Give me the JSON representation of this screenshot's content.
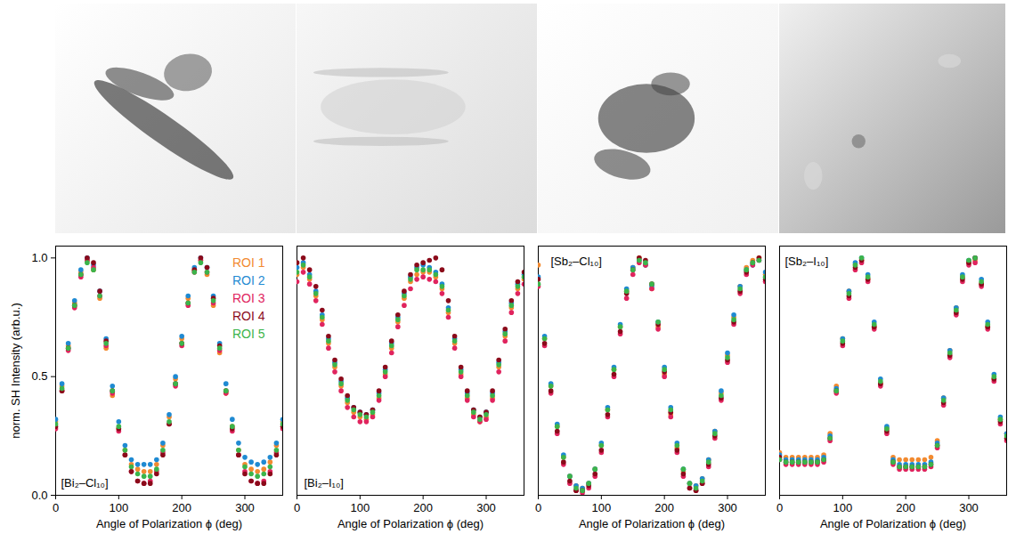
{
  "chart_data": [
    {
      "type": "scatter",
      "title": "[Bi₂–Cl₁₀]",
      "x_label": "Angle of Polarization ϕ (deg)",
      "y_label": "norm. SH Intensity (arb.u.)",
      "xlim": [
        0,
        360
      ],
      "xticks": [
        0,
        100,
        200,
        300
      ],
      "ylim": [
        0,
        1.05
      ],
      "yticks": [
        {
          "value": 0,
          "label": "0.0"
        },
        {
          "value": 0.5,
          "label": "0.5"
        },
        {
          "value": 1,
          "label": "1.0"
        }
      ],
      "legend": "upper right",
      "marker": "circle",
      "x": [
        0,
        10,
        20,
        30,
        40,
        50,
        60,
        70,
        80,
        90,
        100,
        110,
        120,
        130,
        140,
        150,
        160,
        170,
        180,
        190,
        200,
        210,
        220,
        230,
        240,
        250,
        260,
        270,
        280,
        290,
        300,
        310,
        320,
        330,
        340,
        350,
        360
      ],
      "series": [
        {
          "name": "ROI 1",
          "color": "#f28a30",
          "values": [
            0.31,
            0.46,
            0.63,
            0.81,
            0.94,
            0.99,
            0.95,
            0.83,
            0.62,
            0.42,
            0.28,
            0.19,
            0.13,
            0.11,
            0.1,
            0.1,
            0.13,
            0.21,
            0.33,
            0.49,
            0.66,
            0.83,
            0.95,
            0.99,
            0.93,
            0.8,
            0.6,
            0.43,
            0.29,
            0.19,
            0.13,
            0.11,
            0.1,
            0.11,
            0.14,
            0.21,
            0.31
          ]
        },
        {
          "name": "ROI 2",
          "color": "#1f8ad2",
          "values": [
            0.32,
            0.47,
            0.64,
            0.82,
            0.95,
            1.0,
            0.97,
            0.86,
            0.66,
            0.46,
            0.31,
            0.21,
            0.15,
            0.13,
            0.13,
            0.13,
            0.15,
            0.22,
            0.34,
            0.5,
            0.67,
            0.84,
            0.96,
            1.0,
            0.96,
            0.84,
            0.64,
            0.47,
            0.32,
            0.22,
            0.16,
            0.14,
            0.13,
            0.14,
            0.16,
            0.22,
            0.32
          ]
        },
        {
          "name": "ROI 3",
          "color": "#e0245e",
          "values": [
            0.28,
            0.44,
            0.61,
            0.79,
            0.92,
            0.99,
            0.96,
            0.84,
            0.63,
            0.43,
            0.27,
            0.17,
            0.1,
            0.06,
            0.05,
            0.06,
            0.1,
            0.18,
            0.3,
            0.46,
            0.63,
            0.8,
            0.94,
            0.99,
            0.94,
            0.81,
            0.61,
            0.43,
            0.27,
            0.17,
            0.1,
            0.06,
            0.05,
            0.06,
            0.1,
            0.18,
            0.28
          ]
        },
        {
          "name": "ROI 4",
          "color": "#8b0a1a",
          "values": [
            0.29,
            0.44,
            0.62,
            0.8,
            0.93,
            1.0,
            0.98,
            0.86,
            0.65,
            0.44,
            0.28,
            0.17,
            0.1,
            0.06,
            0.05,
            0.05,
            0.09,
            0.17,
            0.3,
            0.47,
            0.64,
            0.81,
            0.95,
            1.0,
            0.96,
            0.83,
            0.63,
            0.44,
            0.28,
            0.17,
            0.09,
            0.06,
            0.05,
            0.05,
            0.09,
            0.17,
            0.29
          ]
        },
        {
          "name": "ROI 5",
          "color": "#3cb44b",
          "values": [
            0.3,
            0.45,
            0.62,
            0.8,
            0.93,
            0.98,
            0.95,
            0.84,
            0.64,
            0.44,
            0.29,
            0.19,
            0.12,
            0.09,
            0.08,
            0.08,
            0.11,
            0.19,
            0.31,
            0.47,
            0.64,
            0.81,
            0.94,
            0.98,
            0.94,
            0.82,
            0.62,
            0.44,
            0.29,
            0.19,
            0.12,
            0.09,
            0.08,
            0.09,
            0.12,
            0.19,
            0.3
          ]
        }
      ]
    },
    {
      "type": "scatter",
      "title": "[Bi₂–I₁₀]",
      "x_label": "Angle of Polarization ϕ (deg)",
      "xlim": [
        0,
        360
      ],
      "xticks": [
        0,
        100,
        200,
        300
      ],
      "ylim": [
        0,
        1.05
      ],
      "tick_labels": "x",
      "marker": "circle",
      "x": [
        0,
        10,
        20,
        30,
        40,
        50,
        60,
        70,
        80,
        90,
        100,
        110,
        120,
        130,
        140,
        150,
        160,
        170,
        180,
        190,
        200,
        210,
        220,
        230,
        240,
        250,
        260,
        270,
        280,
        290,
        300,
        310,
        320,
        330,
        340,
        350,
        360
      ],
      "series": [
        {
          "name": "ROI 1",
          "color": "#f28a30",
          "values": [
            0.93,
            0.96,
            0.91,
            0.84,
            0.74,
            0.64,
            0.54,
            0.46,
            0.39,
            0.35,
            0.33,
            0.32,
            0.34,
            0.41,
            0.51,
            0.62,
            0.73,
            0.83,
            0.9,
            0.93,
            0.94,
            0.94,
            0.92,
            0.87,
            0.77,
            0.64,
            0.51,
            0.41,
            0.34,
            0.31,
            0.33,
            0.41,
            0.54,
            0.67,
            0.79,
            0.87,
            0.91
          ]
        },
        {
          "name": "ROI 2",
          "color": "#1f8ad2",
          "values": [
            0.96,
            0.98,
            0.93,
            0.86,
            0.76,
            0.66,
            0.56,
            0.48,
            0.41,
            0.37,
            0.35,
            0.34,
            0.36,
            0.43,
            0.53,
            0.64,
            0.75,
            0.85,
            0.92,
            0.96,
            0.97,
            0.96,
            0.94,
            0.89,
            0.79,
            0.66,
            0.53,
            0.43,
            0.36,
            0.33,
            0.35,
            0.43,
            0.56,
            0.69,
            0.81,
            0.89,
            0.93
          ]
        },
        {
          "name": "ROI 3",
          "color": "#e0245e",
          "values": [
            0.9,
            0.94,
            0.89,
            0.82,
            0.72,
            0.62,
            0.52,
            0.44,
            0.37,
            0.33,
            0.31,
            0.31,
            0.33,
            0.4,
            0.5,
            0.6,
            0.71,
            0.8,
            0.87,
            0.91,
            0.92,
            0.91,
            0.9,
            0.85,
            0.75,
            0.62,
            0.5,
            0.4,
            0.33,
            0.31,
            0.32,
            0.4,
            0.52,
            0.65,
            0.77,
            0.85,
            0.89
          ]
        },
        {
          "name": "ROI 4",
          "color": "#8b0a1a",
          "values": [
            0.98,
            1.0,
            0.95,
            0.88,
            0.78,
            0.67,
            0.57,
            0.49,
            0.42,
            0.37,
            0.35,
            0.34,
            0.36,
            0.44,
            0.54,
            0.65,
            0.76,
            0.86,
            0.93,
            0.97,
            0.98,
            0.99,
            1.0,
            0.95,
            0.82,
            0.67,
            0.54,
            0.44,
            0.36,
            0.33,
            0.35,
            0.44,
            0.57,
            0.7,
            0.82,
            0.9,
            0.94
          ]
        },
        {
          "name": "ROI 5",
          "color": "#3cb44b",
          "values": [
            0.94,
            0.97,
            0.92,
            0.85,
            0.75,
            0.65,
            0.55,
            0.47,
            0.4,
            0.36,
            0.34,
            0.33,
            0.35,
            0.42,
            0.52,
            0.63,
            0.74,
            0.84,
            0.91,
            0.95,
            0.95,
            0.95,
            0.93,
            0.88,
            0.78,
            0.65,
            0.52,
            0.42,
            0.35,
            0.32,
            0.34,
            0.42,
            0.55,
            0.68,
            0.8,
            0.88,
            0.92
          ]
        }
      ]
    },
    {
      "type": "scatter",
      "title": "[Sb₂–Cl₁₀]",
      "x_label": "Angle of Polarization ϕ (deg)",
      "xlim": [
        0,
        360
      ],
      "xticks": [
        0,
        100,
        200,
        300
      ],
      "ylim": [
        0,
        1.05
      ],
      "tick_labels": "x",
      "marker": "circle",
      "x": [
        0,
        10,
        20,
        30,
        40,
        50,
        60,
        70,
        80,
        90,
        100,
        110,
        120,
        130,
        140,
        150,
        160,
        170,
        180,
        190,
        200,
        210,
        220,
        230,
        240,
        250,
        260,
        270,
        280,
        290,
        300,
        310,
        320,
        330,
        340,
        350,
        360
      ],
      "series": [
        {
          "name": "ROI 1",
          "color": "#f28a30",
          "values": [
            0.97,
            0.66,
            0.46,
            0.29,
            0.16,
            0.08,
            0.04,
            0.03,
            0.05,
            0.11,
            0.21,
            0.36,
            0.53,
            0.71,
            0.86,
            0.96,
            1.0,
            0.97,
            0.87,
            0.71,
            0.51,
            0.34,
            0.2,
            0.1,
            0.05,
            0.04,
            0.07,
            0.15,
            0.27,
            0.43,
            0.59,
            0.75,
            0.88,
            0.96,
            0.99,
            1.0,
            0.93
          ]
        },
        {
          "name": "ROI 2",
          "color": "#1f8ad2",
          "values": [
            0.92,
            0.67,
            0.47,
            0.3,
            0.17,
            0.08,
            0.04,
            0.03,
            0.05,
            0.11,
            0.22,
            0.37,
            0.54,
            0.72,
            0.87,
            0.96,
            0.99,
            0.97,
            0.88,
            0.73,
            0.54,
            0.37,
            0.22,
            0.11,
            0.05,
            0.04,
            0.07,
            0.15,
            0.27,
            0.44,
            0.6,
            0.76,
            0.88,
            0.95,
            0.97,
            0.99,
            0.94
          ]
        },
        {
          "name": "ROI 3",
          "color": "#e0245e",
          "values": [
            0.88,
            0.63,
            0.43,
            0.26,
            0.13,
            0.05,
            0.02,
            0.01,
            0.03,
            0.08,
            0.18,
            0.33,
            0.5,
            0.68,
            0.83,
            0.93,
            0.98,
            0.97,
            0.87,
            0.7,
            0.5,
            0.33,
            0.18,
            0.08,
            0.03,
            0.02,
            0.05,
            0.12,
            0.24,
            0.4,
            0.56,
            0.72,
            0.85,
            0.93,
            0.97,
            0.99,
            0.9
          ]
        },
        {
          "name": "ROI 4",
          "color": "#8b0a1a",
          "values": [
            0.91,
            0.64,
            0.44,
            0.27,
            0.14,
            0.06,
            0.02,
            0.02,
            0.04,
            0.09,
            0.19,
            0.34,
            0.51,
            0.69,
            0.85,
            0.95,
            1.0,
            0.99,
            0.89,
            0.72,
            0.52,
            0.35,
            0.19,
            0.09,
            0.03,
            0.02,
            0.05,
            0.13,
            0.25,
            0.41,
            0.57,
            0.73,
            0.86,
            0.94,
            0.98,
            1.0,
            0.91
          ]
        },
        {
          "name": "ROI 5",
          "color": "#3cb44b",
          "values": [
            0.89,
            0.66,
            0.46,
            0.29,
            0.16,
            0.08,
            0.03,
            0.02,
            0.05,
            0.11,
            0.21,
            0.36,
            0.53,
            0.71,
            0.86,
            0.95,
            0.99,
            0.98,
            0.89,
            0.73,
            0.53,
            0.36,
            0.21,
            0.11,
            0.05,
            0.03,
            0.06,
            0.14,
            0.26,
            0.42,
            0.58,
            0.74,
            0.87,
            0.95,
            0.98,
            0.99,
            0.92
          ]
        }
      ]
    },
    {
      "type": "scatter",
      "title": "[Sb₂–I₁₀]",
      "x_label": "Angle of Polarization ϕ (deg)",
      "xlim": [
        0,
        360
      ],
      "xticks": [
        0,
        100,
        200,
        300
      ],
      "ylim": [
        0,
        1.05
      ],
      "tick_labels": "x",
      "marker": "circle",
      "x": [
        0,
        10,
        20,
        30,
        40,
        50,
        60,
        70,
        80,
        90,
        100,
        110,
        120,
        130,
        140,
        150,
        160,
        170,
        180,
        190,
        200,
        210,
        220,
        230,
        240,
        250,
        260,
        270,
        280,
        290,
        300,
        310,
        320,
        330,
        340,
        350,
        360
      ],
      "series": [
        {
          "name": "ROI 1",
          "color": "#f28a30",
          "values": [
            0.18,
            0.16,
            0.16,
            0.16,
            0.16,
            0.16,
            0.16,
            0.17,
            0.26,
            0.46,
            0.66,
            0.86,
            0.97,
            0.99,
            0.91,
            0.71,
            0.47,
            0.28,
            0.16,
            0.15,
            0.15,
            0.15,
            0.15,
            0.15,
            0.16,
            0.23,
            0.41,
            0.61,
            0.79,
            0.92,
            0.98,
            0.99,
            0.89,
            0.71,
            0.49,
            0.32,
            0.26
          ]
        },
        {
          "name": "ROI 2",
          "color": "#1f8ad2",
          "values": [
            0.17,
            0.15,
            0.15,
            0.15,
            0.15,
            0.15,
            0.15,
            0.16,
            0.25,
            0.45,
            0.66,
            0.86,
            0.98,
            1.0,
            0.93,
            0.73,
            0.49,
            0.29,
            0.15,
            0.13,
            0.13,
            0.13,
            0.13,
            0.13,
            0.14,
            0.22,
            0.41,
            0.61,
            0.79,
            0.93,
            0.99,
            1.0,
            0.91,
            0.73,
            0.51,
            0.33,
            0.26
          ]
        },
        {
          "name": "ROI 3",
          "color": "#e0245e",
          "values": [
            0.15,
            0.13,
            0.13,
            0.13,
            0.13,
            0.13,
            0.13,
            0.14,
            0.23,
            0.43,
            0.63,
            0.83,
            0.95,
            0.98,
            0.9,
            0.7,
            0.46,
            0.26,
            0.13,
            0.11,
            0.11,
            0.11,
            0.11,
            0.11,
            0.12,
            0.2,
            0.38,
            0.58,
            0.76,
            0.9,
            0.97,
            0.98,
            0.88,
            0.7,
            0.48,
            0.3,
            0.23
          ]
        },
        {
          "name": "ROI 4",
          "color": "#8b0a1a",
          "values": [
            0.16,
            0.14,
            0.14,
            0.14,
            0.14,
            0.14,
            0.14,
            0.15,
            0.24,
            0.44,
            0.64,
            0.84,
            0.96,
            0.99,
            0.91,
            0.71,
            0.47,
            0.27,
            0.14,
            0.12,
            0.12,
            0.12,
            0.12,
            0.12,
            0.13,
            0.21,
            0.39,
            0.59,
            0.77,
            0.91,
            0.98,
            1.0,
            0.89,
            0.71,
            0.49,
            0.31,
            0.24
          ]
        },
        {
          "name": "ROI 5",
          "color": "#3cb44b",
          "values": [
            0.15,
            0.14,
            0.14,
            0.14,
            0.14,
            0.14,
            0.14,
            0.15,
            0.24,
            0.44,
            0.65,
            0.85,
            0.97,
            1.0,
            0.92,
            0.72,
            0.48,
            0.28,
            0.14,
            0.12,
            0.12,
            0.12,
            0.12,
            0.12,
            0.13,
            0.21,
            0.4,
            0.6,
            0.78,
            0.92,
            0.99,
            1.0,
            0.9,
            0.72,
            0.5,
            0.32,
            0.25
          ]
        }
      ]
    }
  ]
}
